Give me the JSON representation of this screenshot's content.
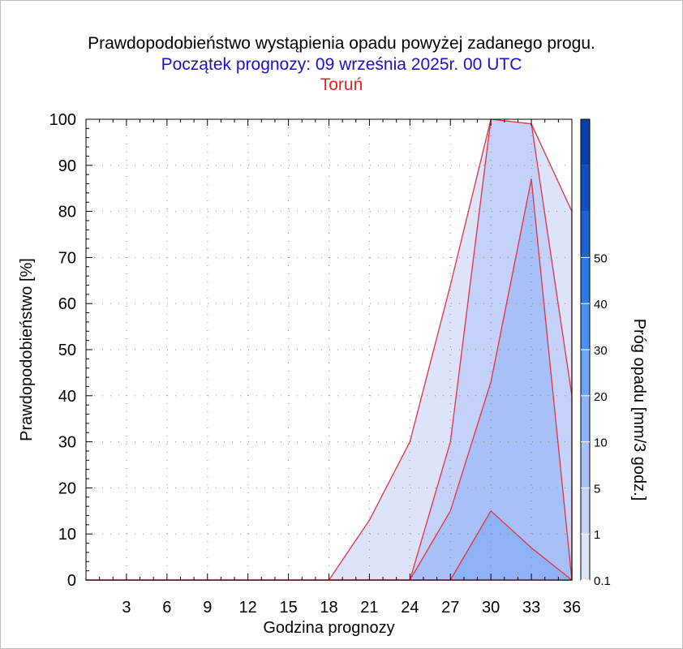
{
  "title": "Prawdopodobieństwo wystąpienia opadu powyżej zadanego progu.",
  "subtitle": "Początek prognozy: 09 września 2025r. 00 UTC",
  "location": "Toruń",
  "colors": {
    "subtitle": "#1a0fd4",
    "location": "#e8202a",
    "outline": "#e8303a",
    "levels": [
      "#dde3fb",
      "#c4d2fa",
      "#a7c1f8",
      "#8db2f7",
      "#6ea4f6",
      "#4a8ff5",
      "#2a79ea",
      "#1a62d6",
      "#0e4fc4",
      "#0a3fae"
    ]
  },
  "chart_data": {
    "type": "area",
    "title": "Prawdopodobieństwo wystąpienia opadu powyżej zadanego progu.",
    "xlabel": "Godzina prognozy",
    "ylabel": "Prawdopodobieństwo [%]",
    "xlim": [
      0,
      36
    ],
    "ylim": [
      0,
      100
    ],
    "x_ticks": [
      3,
      6,
      9,
      12,
      15,
      18,
      21,
      24,
      27,
      30,
      33,
      36
    ],
    "y_ticks": [
      0,
      10,
      20,
      30,
      40,
      50,
      60,
      70,
      80,
      90,
      100
    ],
    "x": [
      0,
      3,
      6,
      9,
      12,
      15,
      18,
      21,
      24,
      27,
      30,
      33,
      36
    ],
    "series": [
      {
        "name": "0.1",
        "values": [
          0,
          0,
          0,
          0,
          0,
          0,
          0,
          13,
          30,
          64,
          100,
          99,
          80
        ]
      },
      {
        "name": "1",
        "values": [
          0,
          0,
          0,
          0,
          0,
          0,
          0,
          0,
          0,
          30,
          100,
          99,
          40
        ]
      },
      {
        "name": "5",
        "values": [
          0,
          0,
          0,
          0,
          0,
          0,
          0,
          0,
          0,
          15,
          43,
          87,
          0
        ]
      },
      {
        "name": "10",
        "values": [
          0,
          0,
          0,
          0,
          0,
          0,
          0,
          0,
          0,
          0,
          15,
          7,
          0
        ]
      }
    ],
    "colorbar": {
      "label": "Próg opadu [mm/3 godz.]",
      "tick_labels": [
        "0.1",
        "1",
        "5",
        "10",
        "20",
        "30",
        "40",
        "50"
      ]
    },
    "grid": "dotted"
  }
}
